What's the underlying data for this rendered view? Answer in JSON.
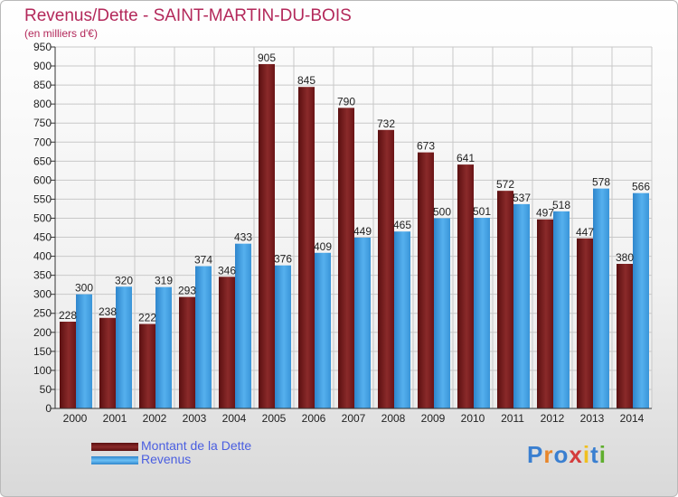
{
  "header": {
    "title": "Revenus/Dette - SAINT-MARTIN-DU-BOIS",
    "subtitle": "(en milliers d'€)"
  },
  "logo": {
    "text": "Proxiti",
    "letters": [
      "P",
      "r",
      "o",
      "x",
      "i",
      "t",
      "i"
    ],
    "colors": [
      "#3a7fd0",
      "#e8862a",
      "#3a7fd0",
      "#d43b3b",
      "#f0c020",
      "#3a7fd0",
      "#5fae2e"
    ]
  },
  "chart_data": {
    "type": "bar",
    "title": "Revenus/Dette - SAINT-MARTIN-DU-BOIS",
    "ylabel": "(en milliers d'€)",
    "ylim": [
      0,
      950
    ],
    "ystep": 50,
    "grid": true,
    "legend_position": "bottom-left",
    "categories": [
      "2000",
      "2001",
      "2002",
      "2003",
      "2004",
      "2005",
      "2006",
      "2007",
      "2008",
      "2009",
      "2010",
      "2011",
      "2012",
      "2013",
      "2014"
    ],
    "series": [
      {
        "name": "Montant de la Dette",
        "color": "#7a1a1a",
        "values": [
          228,
          238,
          222,
          293,
          346,
          905,
          845,
          790,
          732,
          673,
          641,
          572,
          497,
          447,
          380
        ]
      },
      {
        "name": "Revenus",
        "color": "#4aa3e6",
        "values": [
          300,
          320,
          319,
          374,
          433,
          376,
          409,
          449,
          465,
          500,
          501,
          537,
          518,
          578,
          566
        ]
      }
    ]
  }
}
